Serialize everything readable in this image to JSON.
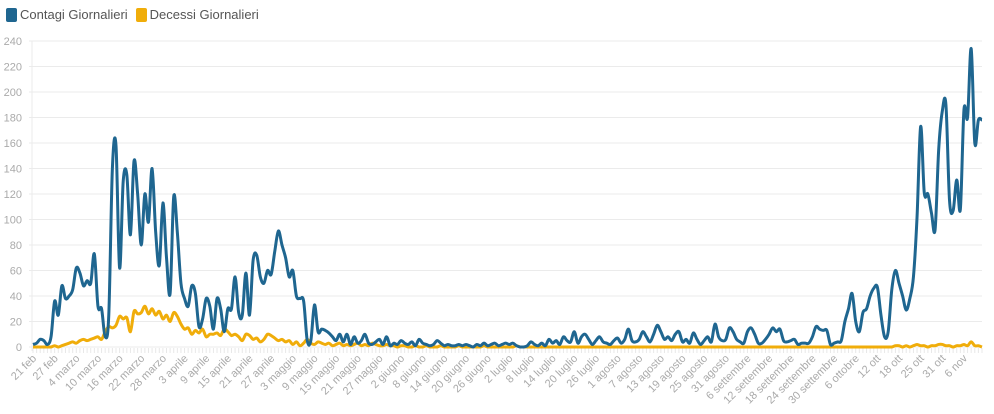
{
  "chart_data": {
    "type": "line",
    "title": "",
    "xlabel": "",
    "ylabel": "",
    "ylim": [
      0,
      240
    ],
    "yticks": [
      0,
      20,
      40,
      60,
      80,
      100,
      120,
      140,
      160,
      180,
      200,
      220,
      240
    ],
    "grid": true,
    "legend_position": "top-left",
    "x_tick_labels": [
      "21 feb",
      "27 feb",
      "4 marzo",
      "10 marzo",
      "16 marzo",
      "22 marzo",
      "28 marzo",
      "3 aprile",
      "9 aprile",
      "15 aprile",
      "21 aprile",
      "27 aprile",
      "3 maggio",
      "9 maggio",
      "15 maggio",
      "21 maggio",
      "27 maggio",
      "2 giugno",
      "8 giugno",
      "14 giugno",
      "20 giugno",
      "26 giugno",
      "2 luglio",
      "8 luglio",
      "14 luglio",
      "20 luglio",
      "26 luglio",
      "1 agosto",
      "7 agosto",
      "13 agosto",
      "19 agosto",
      "25 agosto",
      "31 agosto",
      "6 settembre",
      "12 settembre",
      "18 settembre",
      "24 settembre",
      "30 settembre",
      "6 ottobre",
      "12 ott",
      "18 ott",
      "25 ott",
      "31 ott",
      "6 nov"
    ],
    "series": [
      {
        "name": "Contagi Giornalieri",
        "color": "#1f6690",
        "values": [
          2,
          3,
          6,
          5,
          2,
          8,
          36,
          25,
          48,
          38,
          40,
          45,
          62,
          58,
          48,
          52,
          50,
          73,
          32,
          30,
          8,
          25,
          140,
          158,
          62,
          130,
          135,
          88,
          146,
          120,
          80,
          120,
          98,
          140,
          90,
          64,
          113,
          70,
          42,
          118,
          90,
          50,
          38,
          32,
          48,
          42,
          16,
          22,
          38,
          32,
          14,
          38,
          30,
          12,
          30,
          30,
          55,
          27,
          25,
          58,
          25,
          68,
          72,
          55,
          50,
          60,
          57,
          75,
          91,
          80,
          70,
          55,
          60,
          40,
          38,
          36,
          5,
          5,
          33,
          12,
          14,
          13,
          11,
          8,
          5,
          10,
          4,
          10,
          2,
          8,
          3,
          5,
          10,
          3,
          2,
          4,
          6,
          2,
          8,
          1,
          3,
          2,
          5,
          3,
          2,
          4,
          1,
          6,
          3,
          2,
          1,
          2,
          5,
          3,
          1,
          2,
          1,
          1,
          2,
          1,
          2,
          1,
          0,
          2,
          1,
          3,
          1,
          2,
          3,
          1,
          2,
          3,
          2,
          3,
          1,
          0,
          0,
          1,
          4,
          2,
          1,
          3,
          1,
          6,
          3,
          5,
          2,
          8,
          5,
          4,
          12,
          3,
          8,
          10,
          6,
          2,
          5,
          8,
          4,
          3,
          2,
          5,
          7,
          3,
          6,
          14,
          5,
          4,
          6,
          12,
          8,
          4,
          10,
          17,
          12,
          6,
          8,
          5,
          10,
          12,
          4,
          6,
          3,
          11,
          6,
          2,
          5,
          8,
          4,
          18,
          8,
          5,
          6,
          15,
          12,
          6,
          4,
          3,
          12,
          15,
          10,
          3,
          3,
          6,
          10,
          15,
          12,
          14,
          5,
          4,
          5,
          6,
          2,
          3,
          3,
          3,
          8,
          16,
          14,
          13,
          13,
          2,
          3,
          4,
          5,
          20,
          30,
          42,
          20,
          12,
          27,
          30,
          40,
          46,
          47,
          25,
          8,
          12,
          45,
          60,
          50,
          40,
          29,
          38,
          55,
          102,
          173,
          121,
          120,
          105,
          92,
          155,
          185,
          190,
          115,
          107,
          131,
          108,
          186,
          180,
          234,
          160,
          178,
          178
        ]
      },
      {
        "name": "Decessi Giornalieri",
        "color": "#f0ad0a",
        "values": [
          0,
          0,
          0,
          0,
          0,
          0,
          1,
          0,
          1,
          2,
          3,
          4,
          3,
          5,
          6,
          5,
          6,
          7,
          8,
          6,
          12,
          16,
          15,
          17,
          24,
          22,
          23,
          12,
          28,
          26,
          27,
          32,
          26,
          30,
          25,
          28,
          22,
          25,
          20,
          27,
          24,
          18,
          14,
          15,
          10,
          13,
          11,
          14,
          8,
          10,
          10,
          11,
          9,
          14,
          12,
          9,
          10,
          8,
          5,
          10,
          9,
          6,
          7,
          4,
          6,
          10,
          9,
          7,
          5,
          6,
          4,
          5,
          2,
          4,
          1,
          3,
          6,
          3,
          2,
          4,
          3,
          2,
          3,
          1,
          2,
          3,
          1,
          2,
          1,
          2,
          3,
          1,
          2,
          1,
          3,
          2,
          1,
          1,
          2,
          1,
          1,
          0,
          1,
          1,
          0,
          0,
          1,
          0,
          0,
          1,
          0,
          0,
          0,
          1,
          0,
          0,
          0,
          0,
          1,
          0,
          0,
          0,
          0,
          0,
          0,
          1,
          0,
          0,
          0,
          0,
          0,
          0,
          0,
          0,
          1,
          0,
          0,
          0,
          0,
          0,
          0,
          0,
          0,
          0,
          0,
          0,
          0,
          0,
          0,
          0,
          0,
          0,
          0,
          0,
          0,
          0,
          0,
          0,
          0,
          0,
          0,
          0,
          0,
          0,
          0,
          0,
          0,
          0,
          0,
          0,
          0,
          0,
          0,
          0,
          0,
          0,
          0,
          0,
          0,
          0,
          0,
          0,
          0,
          0,
          0,
          0,
          0,
          0,
          0,
          0,
          0,
          0,
          0,
          0,
          0,
          0,
          0,
          0,
          0,
          0,
          0,
          0,
          0,
          0,
          0,
          0,
          0,
          0,
          0,
          0,
          0,
          0,
          0,
          0,
          0,
          0,
          0,
          0,
          0,
          0,
          0,
          0,
          0,
          0,
          0,
          0,
          0,
          0,
          0,
          0,
          0,
          0,
          0,
          0,
          0,
          0,
          0,
          0,
          0,
          1,
          1,
          0,
          1,
          0,
          1,
          2,
          1,
          1,
          0,
          1,
          1,
          2,
          2,
          1,
          1,
          0,
          1,
          1,
          2,
          1,
          4,
          1,
          1,
          0
        ]
      }
    ]
  }
}
